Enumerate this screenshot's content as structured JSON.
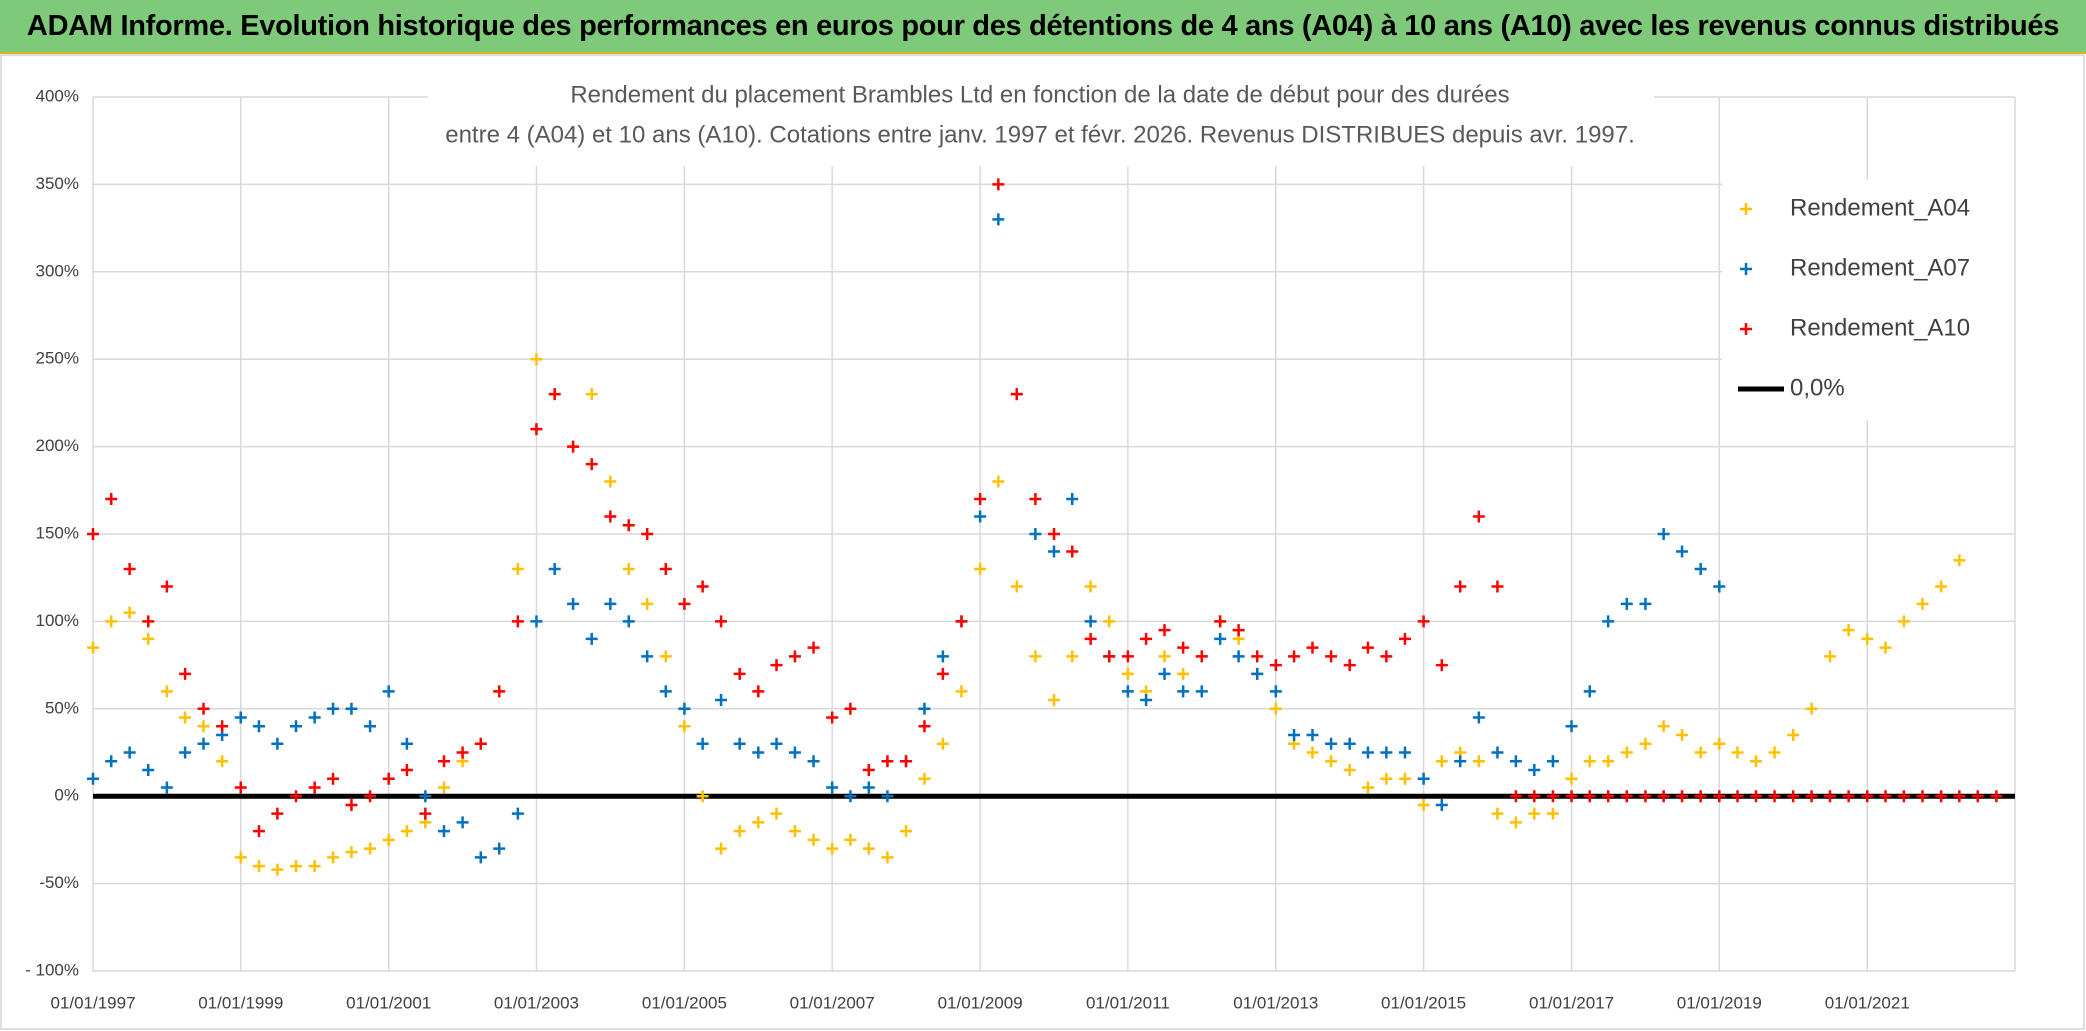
{
  "header": {
    "title": "ADAM Informe. Evolution historique des performances en euros pour des détentions de 4 ans (A04) à 10 ans (A10) avec les revenus connus distribués"
  },
  "chart_data": {
    "type": "scatter",
    "title": "Rendement du placement Brambles Ltd en fonction de la date de début pour des durées",
    "subtitle": "entre 4 (A04) et 10 ans (A10). Cotations entre janv. 1997 et févr. 2026. Revenus DISTRIBUES depuis avr. 1997.",
    "x": [
      "01/01/1997",
      "01/04/1997",
      "01/07/1997",
      "01/10/1997",
      "01/01/1998",
      "01/04/1998",
      "01/07/1998",
      "01/10/1998",
      "01/01/1999",
      "01/04/1999",
      "01/07/1999",
      "01/10/1999",
      "01/01/2000",
      "01/04/2000",
      "01/07/2000",
      "01/10/2000",
      "01/01/2001",
      "01/04/2001",
      "01/07/2001",
      "01/10/2001",
      "01/01/2002",
      "01/04/2002",
      "01/07/2002",
      "01/10/2002",
      "01/01/2003",
      "01/04/2003",
      "01/07/2003",
      "01/10/2003",
      "01/01/2004",
      "01/04/2004",
      "01/07/2004",
      "01/10/2004",
      "01/01/2005",
      "01/04/2005",
      "01/07/2005",
      "01/10/2005",
      "01/01/2006",
      "01/04/2006",
      "01/07/2006",
      "01/10/2006",
      "01/01/2007",
      "01/04/2007",
      "01/07/2007",
      "01/10/2007",
      "01/01/2008",
      "01/04/2008",
      "01/07/2008",
      "01/10/2008",
      "01/01/2009",
      "01/04/2009",
      "01/07/2009",
      "01/10/2009",
      "01/01/2010",
      "01/04/2010",
      "01/07/2010",
      "01/10/2010",
      "01/01/2011",
      "01/04/2011",
      "01/07/2011",
      "01/10/2011",
      "01/01/2012",
      "01/04/2012",
      "01/07/2012",
      "01/10/2012",
      "01/01/2013",
      "01/04/2013",
      "01/07/2013",
      "01/10/2013",
      "01/01/2014",
      "01/04/2014",
      "01/07/2014",
      "01/10/2014",
      "01/01/2015",
      "01/04/2015",
      "01/07/2015",
      "01/10/2015",
      "01/01/2016",
      "01/04/2016",
      "01/07/2016",
      "01/10/2016",
      "01/01/2017",
      "01/04/2017",
      "01/07/2017",
      "01/10/2017",
      "01/01/2018",
      "01/04/2018",
      "01/07/2018",
      "01/10/2018",
      "01/01/2019",
      "01/04/2019",
      "01/07/2019",
      "01/10/2019",
      "01/01/2020",
      "01/04/2020",
      "01/07/2020",
      "01/10/2020",
      "01/01/2021",
      "01/04/2021",
      "01/07/2021",
      "01/10/2021",
      "01/01/2022",
      "01/04/2022",
      "01/07/2022",
      "01/10/2022"
    ],
    "series": [
      {
        "name": "Rendement_A04",
        "color": "#FFC000",
        "values": [
          85,
          100,
          105,
          90,
          60,
          45,
          40,
          20,
          -35,
          -40,
          -42,
          -40,
          -40,
          -35,
          -32,
          -30,
          -25,
          -20,
          -15,
          5,
          20,
          30,
          60,
          130,
          250,
          230,
          200,
          230,
          180,
          130,
          110,
          80,
          40,
          0,
          -30,
          -20,
          -15,
          -10,
          -20,
          -25,
          -30,
          -25,
          -30,
          -35,
          -20,
          10,
          30,
          60,
          130,
          180,
          120,
          80,
          55,
          80,
          120,
          100,
          70,
          60,
          80,
          70,
          80,
          100,
          90,
          70,
          50,
          30,
          25,
          20,
          15,
          5,
          10,
          10,
          -5,
          20,
          25,
          20,
          -10,
          -15,
          -10,
          -10,
          10,
          20,
          20,
          25,
          30,
          40,
          35,
          25,
          30,
          25,
          20,
          25,
          35,
          50,
          80,
          95,
          90,
          85,
          100,
          110,
          120,
          135,
          null,
          null
        ]
      },
      {
        "name": "Rendement_A07",
        "color": "#0070C0",
        "values": [
          10,
          20,
          25,
          15,
          5,
          25,
          30,
          35,
          45,
          40,
          30,
          40,
          45,
          50,
          50,
          40,
          60,
          30,
          0,
          -20,
          -15,
          -35,
          -30,
          -10,
          100,
          130,
          110,
          90,
          110,
          100,
          80,
          60,
          50,
          30,
          55,
          30,
          25,
          30,
          25,
          20,
          5,
          0,
          5,
          0,
          20,
          50,
          80,
          100,
          160,
          330,
          230,
          150,
          140,
          170,
          100,
          80,
          60,
          55,
          70,
          60,
          60,
          90,
          80,
          70,
          60,
          35,
          35,
          30,
          30,
          25,
          25,
          25,
          10,
          -5,
          20,
          45,
          25,
          20,
          15,
          20,
          40,
          60,
          100,
          110,
          110,
          150,
          140,
          130,
          120,
          null,
          null,
          null,
          null,
          null,
          null,
          null,
          null,
          null,
          null,
          null,
          null,
          null,
          null,
          null
        ]
      },
      {
        "name": "Rendement_A10",
        "color": "#FF0000",
        "values": [
          150,
          170,
          130,
          100,
          120,
          70,
          50,
          40,
          5,
          -20,
          -10,
          0,
          5,
          10,
          -5,
          0,
          10,
          15,
          -10,
          20,
          25,
          30,
          60,
          100,
          210,
          230,
          200,
          190,
          160,
          155,
          150,
          130,
          110,
          120,
          100,
          70,
          60,
          75,
          80,
          85,
          45,
          50,
          15,
          20,
          20,
          40,
          70,
          100,
          170,
          350,
          230,
          170,
          150,
          140,
          90,
          80,
          80,
          90,
          95,
          85,
          80,
          100,
          95,
          80,
          75,
          80,
          85,
          80,
          75,
          85,
          80,
          90,
          100,
          75,
          120,
          160,
          120,
          0,
          0,
          0,
          0,
          0,
          0,
          0,
          0,
          0,
          0,
          0,
          0,
          0,
          0,
          0,
          0,
          0,
          0,
          0,
          0,
          0,
          0,
          0,
          0,
          0,
          0,
          0
        ]
      }
    ],
    "reference_line": {
      "name": "0,0%",
      "value": 0,
      "color": "#000000"
    },
    "xlim": [
      "01/01/1997",
      "01/01/2023"
    ],
    "xticks": [
      "01/01/1997",
      "01/01/1999",
      "01/01/2001",
      "01/01/2003",
      "01/01/2005",
      "01/01/2007",
      "01/01/2009",
      "01/01/2011",
      "01/01/2013",
      "01/01/2015",
      "01/01/2017",
      "01/01/2019",
      "01/01/2021"
    ],
    "ylim": [
      -100,
      400
    ],
    "yticks": [
      {
        "value": -100,
        "label": "- 100%"
      },
      {
        "value": -50,
        "label": "-50%"
      },
      {
        "value": 0,
        "label": "0%"
      },
      {
        "value": 50,
        "label": "50%"
      },
      {
        "value": 100,
        "label": "100%"
      },
      {
        "value": 150,
        "label": "150%"
      },
      {
        "value": 200,
        "label": "200%"
      },
      {
        "value": 250,
        "label": "250%"
      },
      {
        "value": 300,
        "label": "300%"
      },
      {
        "value": 350,
        "label": "350%"
      },
      {
        "value": 400,
        "label": "400%"
      }
    ],
    "grid": true,
    "legend": "top-right"
  }
}
